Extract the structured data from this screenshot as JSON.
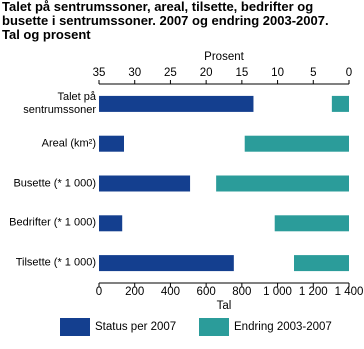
{
  "chart_data": {
    "type": "bar",
    "orientation": "horizontal",
    "title": "Talet på sentrumssoner, areal, tilsette, bedrifter og busette i sentrumssoner. 2007 og endring 2003-2007. Tal og prosent",
    "xlabel": "Tal",
    "x2label": "Prosent",
    "categories": [
      "Talet på sentrumssoner",
      "Areal (km²)",
      "Busette (* 1 000)",
      "Bedrifter (* 1 000)",
      "Tilsette (* 1 000)"
    ],
    "series": [
      {
        "name": "Status per 2007",
        "color": "#143f8f",
        "values": [
          865,
          140,
          510,
          130,
          755
        ],
        "axis": "x"
      },
      {
        "name": "Endring 2003-2007",
        "color": "#2b9c9a",
        "values": [
          2.4,
          14.6,
          18.6,
          10.4,
          7.7
        ],
        "axis": "x2"
      }
    ],
    "xlim": [
      0,
      1400
    ],
    "xticks": [
      0,
      200,
      400,
      600,
      800,
      {
        "value": 1000,
        "label": "1 000"
      },
      {
        "value": 1200,
        "label": "1 200"
      },
      {
        "value": 1400,
        "label": "1 400"
      }
    ],
    "x2lim": [
      35,
      0
    ],
    "x2ticks": [
      35,
      30,
      25,
      20,
      15,
      10,
      5,
      0
    ],
    "legend": "bottom"
  }
}
